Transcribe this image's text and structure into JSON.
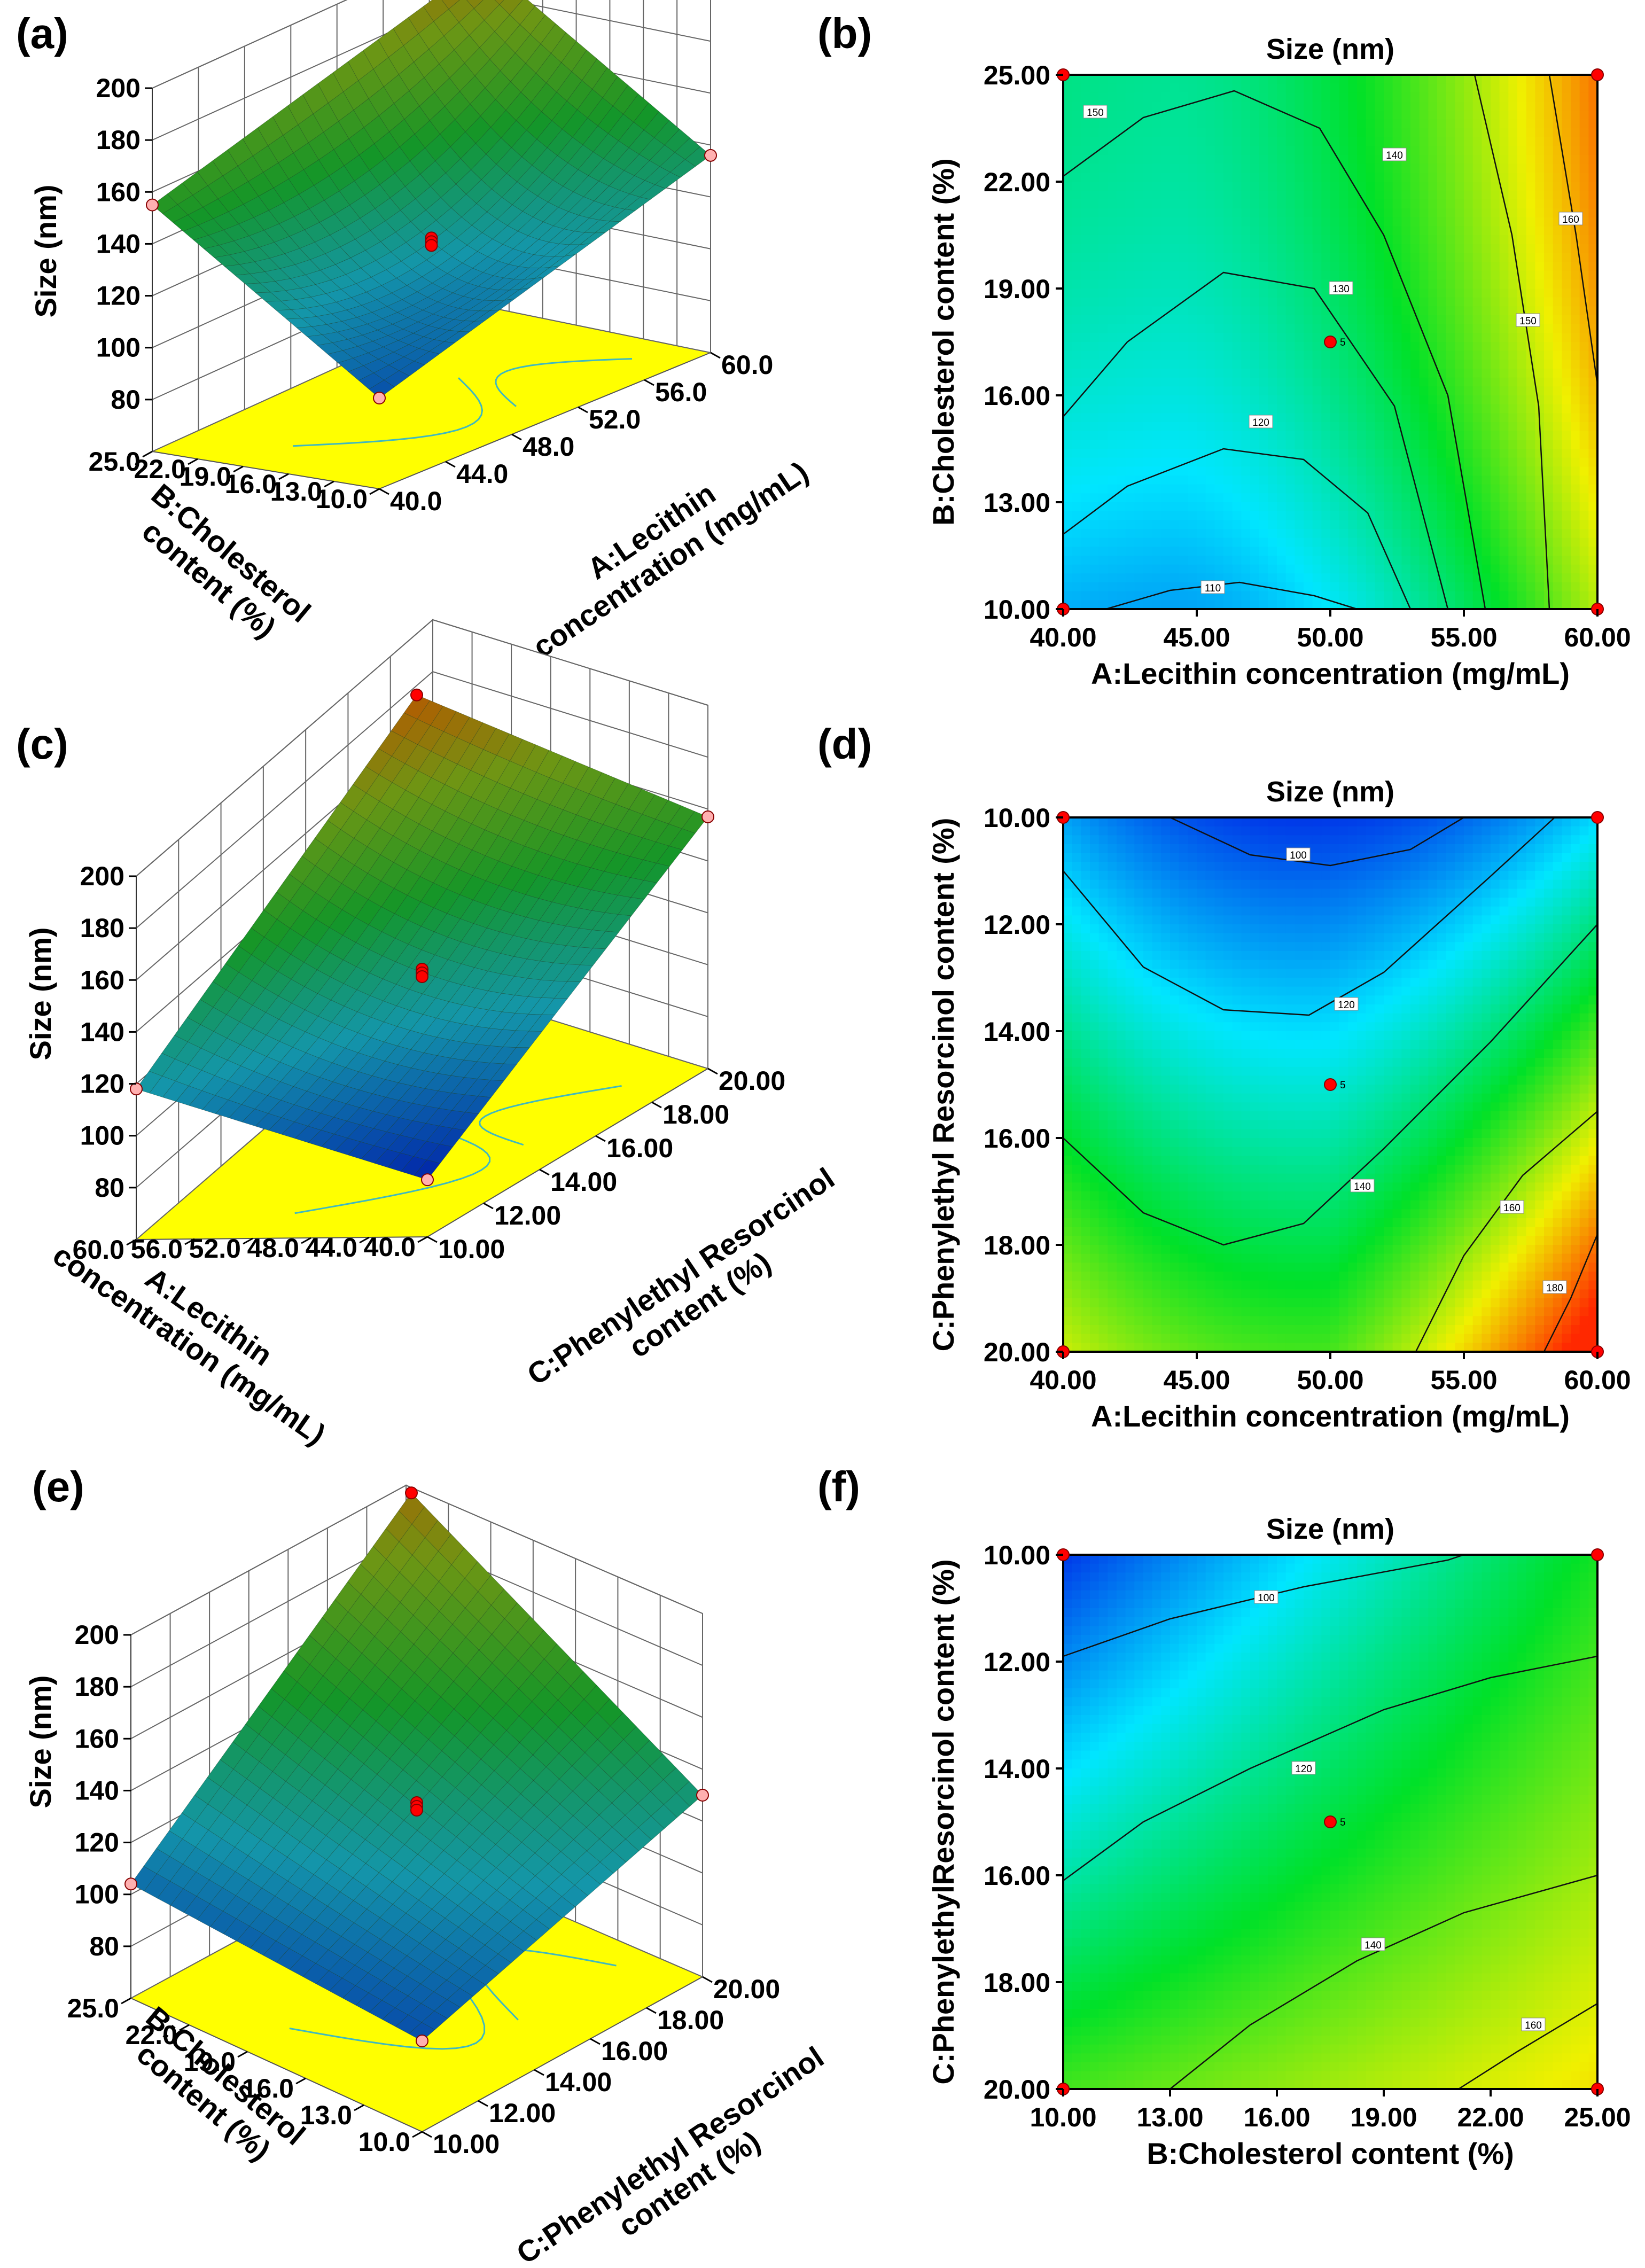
{
  "chart_data": [
    {
      "panel": "(a)",
      "type": "surface",
      "zlabel": "Size (nm)",
      "z_ticks": [
        "80",
        "100",
        "120",
        "140",
        "160",
        "180",
        "200"
      ],
      "y_label_lines": [
        "B:Cholesterol",
        "content (%)"
      ],
      "y_ticks": [
        "25.0",
        "22.0",
        "19.0",
        "16.0",
        "13.0",
        "10.0"
      ],
      "x_label_lines": [
        "A:Lecithin",
        "concentration (mg/mL)"
      ],
      "x_ticks": [
        "40.0",
        "44.0",
        "48.0",
        "52.0",
        "56.0",
        "60.0"
      ],
      "corners_z": {
        "near": 95,
        "left": 155,
        "right": 136,
        "back": 196
      },
      "center_z": 122
    },
    {
      "panel": "(b)",
      "type": "contour",
      "title": "Size (nm)",
      "xlabel": "A:Lecithin concentration (mg/mL)",
      "ylabel": "B:Cholesterol content (%)",
      "x_ticks": [
        "40.00",
        "45.00",
        "50.00",
        "55.00",
        "60.00"
      ],
      "y_ticks": [
        "25.00",
        "22.00",
        "19.00",
        "16.00",
        "13.00",
        "10.00"
      ],
      "xlim": [
        40,
        60
      ],
      "ylim": [
        10,
        25
      ],
      "contours": [
        {
          "level": "110"
        },
        {
          "level": "120"
        },
        {
          "level": "130"
        },
        {
          "level": "140"
        },
        {
          "level": "150"
        },
        {
          "level": "150"
        },
        {
          "level": "160"
        }
      ],
      "center_point": {
        "x": 50,
        "y": 17.5,
        "label": "5"
      }
    },
    {
      "panel": "(c)",
      "type": "surface",
      "zlabel": "Size (nm)",
      "z_ticks": [
        "80",
        "100",
        "120",
        "140",
        "160",
        "180",
        "200"
      ],
      "y_label_lines": [
        "A:Lecithin",
        "concentration (mg/mL)"
      ],
      "y_ticks": [
        "60.0",
        "56.0",
        "52.0",
        "48.0",
        "44.0",
        "40.0"
      ],
      "x_label_lines": [
        "C:Phenylethyl Resorcinol",
        "content (%)"
      ],
      "x_ticks": [
        "10.00",
        "12.00",
        "14.00",
        "16.00",
        "18.00",
        "20.00"
      ],
      "corners_z": {
        "near": 82,
        "left": 118,
        "right": 157,
        "back": 205
      },
      "center_z": 130
    },
    {
      "panel": "(d)",
      "type": "contour",
      "title": "Size (nm)",
      "xlabel": "A:Lecithin concentration (mg/mL)",
      "ylabel": "C:Phenylethyl Resorcinol content (%)",
      "x_ticks": [
        "40.00",
        "45.00",
        "50.00",
        "55.00",
        "60.00"
      ],
      "y_ticks": [
        "10.00",
        "12.00",
        "14.00",
        "16.00",
        "18.00",
        "20.00"
      ],
      "xlim": [
        40,
        60
      ],
      "ylim": [
        20,
        10
      ],
      "contours": [
        {
          "level": "100"
        },
        {
          "level": "120"
        },
        {
          "level": "140"
        },
        {
          "level": "160"
        },
        {
          "level": "180"
        }
      ],
      "center_point": {
        "x": 50,
        "y": 15,
        "label": "5"
      }
    },
    {
      "panel": "(e)",
      "type": "surface",
      "zlabel": "Size (nm)",
      "z_ticks": [
        "80",
        "100",
        "120",
        "140",
        "160",
        "180",
        "200"
      ],
      "y_label_lines": [
        "B:Cholesterol",
        "content (%)"
      ],
      "y_ticks": [
        "25.0",
        "22.0",
        "19.0",
        "16.0",
        "13.0",
        "10.0"
      ],
      "x_label_lines": [
        "C:Phenylethyl Resorcinol",
        "content (%)"
      ],
      "x_ticks": [
        "10.00",
        "12.00",
        "14.00",
        "16.00",
        "18.00",
        "20.00"
      ],
      "corners_z": {
        "near": 95,
        "left": 104,
        "right": 130,
        "back": 195
      },
      "center_z": 130
    },
    {
      "panel": "(f)",
      "type": "contour",
      "title": "Size (nm)",
      "xlabel": "B:Cholesterol content (%)",
      "ylabel": "C:PhenylethylResorcinol content (%)",
      "x_ticks": [
        "10.00",
        "13.00",
        "16.00",
        "19.00",
        "22.00",
        "25.00"
      ],
      "y_ticks": [
        "10.00",
        "12.00",
        "14.00",
        "16.00",
        "18.00",
        "20.00"
      ],
      "xlim": [
        10,
        25
      ],
      "ylim": [
        20,
        10
      ],
      "contours": [
        {
          "level": "100"
        },
        {
          "level": "120"
        },
        {
          "level": "140"
        },
        {
          "level": "160"
        }
      ],
      "center_point": {
        "x": 17.5,
        "y": 15,
        "label": "5"
      }
    }
  ]
}
